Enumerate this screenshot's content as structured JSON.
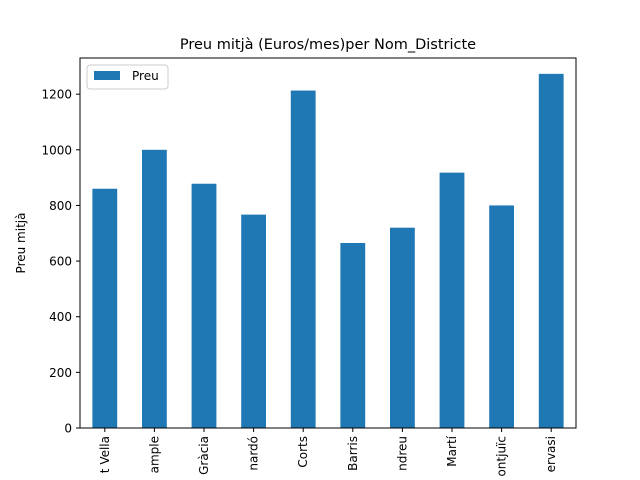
{
  "chart_data": {
    "type": "bar",
    "title": "Preu mitjà (Euros/mes)per Nom_Districte",
    "xlabel": "",
    "ylabel": "Preu mitjà",
    "categories": [
      "t Vella",
      "ample",
      "Gràcia",
      "nardó",
      "Corts",
      "Barris",
      "ndreu",
      "Martí",
      "ontjuïc",
      "ervasi"
    ],
    "series": [
      {
        "name": "Preu",
        "values": [
          860,
          1000,
          878,
          767,
          1213,
          665,
          720,
          918,
          800,
          1273
        ],
        "color": "#1f77b4"
      }
    ],
    "ylim": [
      0,
      1330
    ],
    "yticks": [
      0,
      200,
      400,
      600,
      800,
      1000,
      1200
    ],
    "grid": false,
    "legend_position": "top-left"
  }
}
